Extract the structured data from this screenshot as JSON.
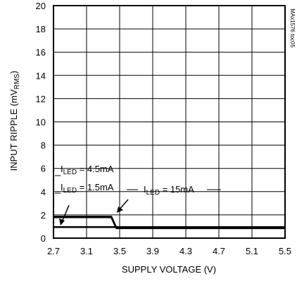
{
  "chart_data": {
    "type": "line",
    "xlabel": "SUPPLY VOLTAGE (V)",
    "ylabel_main": "INPUT RIPPLE (mV",
    "ylabel_sub": "RMS",
    "ylabel_close": ")",
    "xlim": [
      2.7,
      5.5
    ],
    "ylim": [
      0,
      20
    ],
    "xticks": [
      "2.7",
      "3.1",
      "3.5",
      "3.9",
      "4.3",
      "4.7",
      "5.1",
      "5.5"
    ],
    "yticks": [
      "0",
      "2",
      "4",
      "6",
      "8",
      "10",
      "12",
      "14",
      "16",
      "18",
      "20"
    ],
    "grid": true,
    "figure_id": "MAx1576 toc05",
    "series": [
      {
        "name_prefix": "I",
        "name_sub": "LED",
        "name_value": " = 4.5mA",
        "x": [
          2.7,
          2.8,
          3.0,
          3.2,
          3.4,
          3.46,
          5.5
        ],
        "y": [
          1.85,
          1.85,
          1.85,
          1.85,
          1.85,
          0.9,
          0.9
        ]
      },
      {
        "name_prefix": "I",
        "name_sub": "LED",
        "name_value": " = 1.5mA",
        "x": [
          2.7,
          2.8,
          3.0,
          3.2,
          3.4,
          3.46,
          5.5
        ],
        "y": [
          1.8,
          1.8,
          1.8,
          1.8,
          1.8,
          0.85,
          0.85
        ]
      },
      {
        "name_prefix": "I",
        "name_sub": "LED",
        "name_value": " = 15mA",
        "x": [
          2.7,
          3.0,
          3.5,
          4.0,
          4.5,
          5.0,
          5.5
        ],
        "y": [
          0.95,
          0.95,
          0.95,
          0.95,
          0.95,
          0.95,
          0.95
        ]
      }
    ]
  }
}
